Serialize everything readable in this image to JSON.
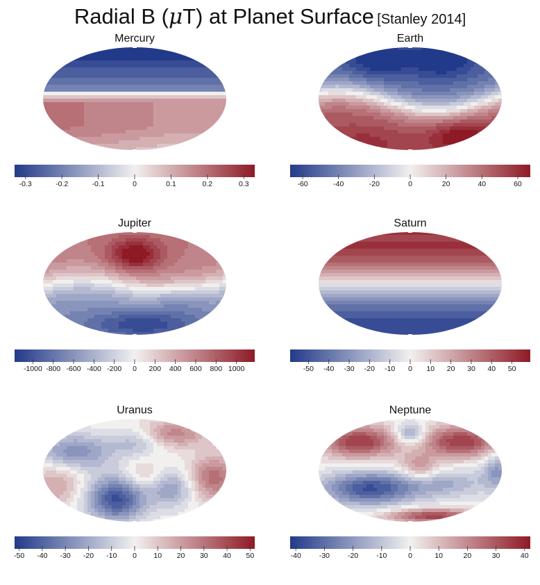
{
  "title": {
    "prefix": "Radial B (",
    "mu": "μ",
    "suffix": "T) at Planet Surface",
    "citation": "[Stanley 2014]"
  },
  "colors": {
    "negative": "#223a8a",
    "zero": "#f2f0ef",
    "positive": "#8e1a26"
  },
  "chart_data": [
    {
      "type": "heatmap",
      "name": "Mercury",
      "projection": "mollweide",
      "clim": [
        -0.33,
        0.33
      ],
      "colorbar_ticks": [
        "-0.3",
        "-0.2",
        "-0.1",
        "0",
        "0.1",
        "0.2",
        "0.3"
      ],
      "tick_values": [
        -0.3,
        -0.2,
        -0.1,
        0,
        0.1,
        0.2,
        0.3
      ],
      "pattern": "axial dipole: strongly negative in north, positive band south of equator, weakening near south pole"
    },
    {
      "type": "heatmap",
      "name": "Earth",
      "projection": "mollweide",
      "clim": [
        -67,
        67
      ],
      "colorbar_ticks": [
        "-60",
        "-40",
        "-20",
        "0",
        "20",
        "40",
        "60"
      ],
      "tick_values": [
        -60,
        -40,
        -20,
        0,
        20,
        40,
        60
      ],
      "pattern": "tilted dipole: negative northern hemisphere with two lobes, positive southern hemisphere, wavy equatorial zero line"
    },
    {
      "type": "heatmap",
      "name": "Jupiter",
      "projection": "mollweide",
      "clim": [
        -1180,
        1180
      ],
      "colorbar_ticks": [
        "-1000",
        "-800",
        "-600",
        "-400",
        "-200",
        "0",
        "200",
        "400",
        "600",
        "800",
        "1000"
      ],
      "tick_values": [
        -1000,
        -800,
        -600,
        -400,
        -200,
        0,
        200,
        400,
        600,
        800,
        1000
      ],
      "pattern": "dipole: positive north with strong spot, negative south with intense patch near south pole"
    },
    {
      "type": "heatmap",
      "name": "Saturn",
      "projection": "mollweide",
      "clim": [
        -59,
        59
      ],
      "colorbar_ticks": [
        "-50",
        "-40",
        "-30",
        "-20",
        "-10",
        "0",
        "10",
        "20",
        "30",
        "40",
        "50"
      ],
      "tick_values": [
        -50,
        -40,
        -30,
        -20,
        -10,
        0,
        10,
        20,
        30,
        40,
        50
      ],
      "pattern": "axisymmetric dipole: positive north, negative south"
    },
    {
      "type": "heatmap",
      "name": "Uranus",
      "projection": "mollweide",
      "clim": [
        -52,
        52
      ],
      "colorbar_ticks": [
        "-50",
        "-40",
        "-30",
        "-20",
        "-10",
        "0",
        "10",
        "20",
        "30",
        "40",
        "50"
      ],
      "tick_values": [
        -50,
        -40,
        -30,
        -20,
        -10,
        0,
        10,
        20,
        30,
        40,
        50
      ],
      "pattern": "non-axial multipolar field with scattered positive and negative patches"
    },
    {
      "type": "heatmap",
      "name": "Neptune",
      "projection": "mollweide",
      "clim": [
        -42,
        42
      ],
      "colorbar_ticks": [
        "-40",
        "-30",
        "-20",
        "-10",
        "0",
        "10",
        "20",
        "30",
        "40"
      ],
      "tick_values": [
        -40,
        -30,
        -20,
        -10,
        0,
        10,
        20,
        30,
        40
      ],
      "pattern": "non-axial multipolar field: positive lobes north, negative band mid-south, positive strip near south"
    }
  ]
}
